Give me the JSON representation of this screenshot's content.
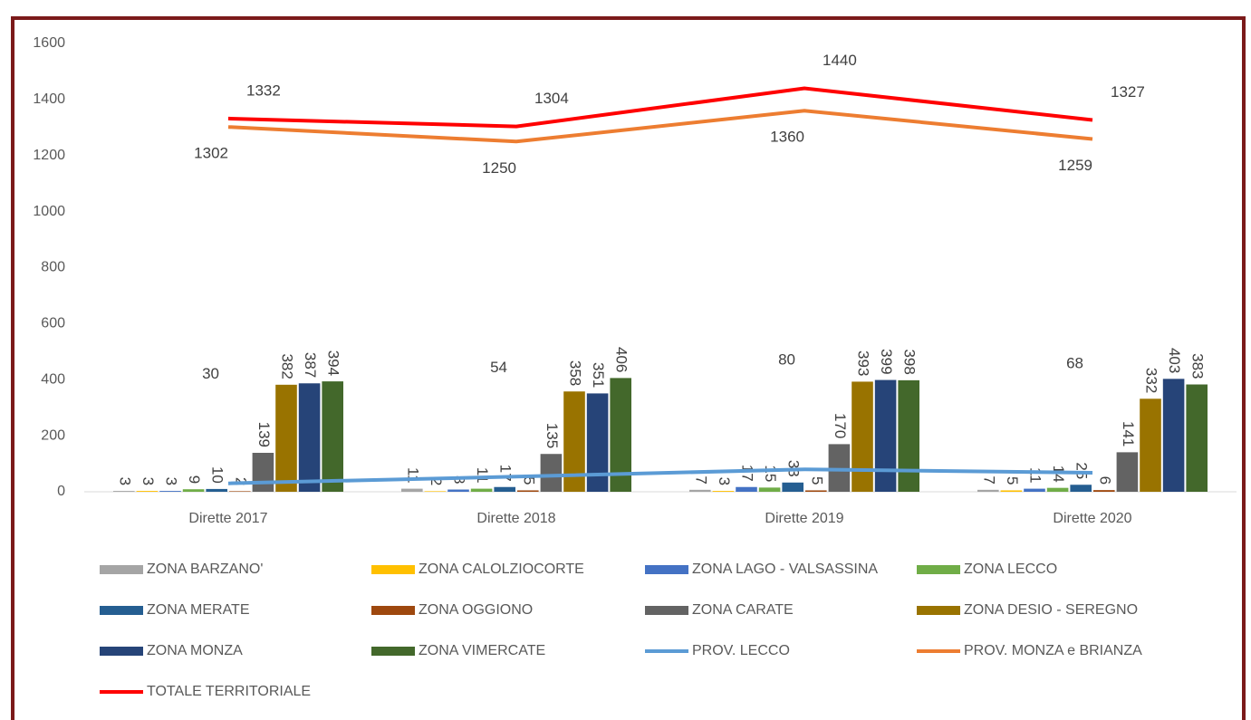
{
  "chart_data": {
    "type": "bar_line",
    "categories": [
      "Dirette 2017",
      "Dirette 2018",
      "Dirette 2019",
      "Dirette 2020"
    ],
    "ylim": [
      0,
      1600
    ],
    "yticks": [
      0,
      200,
      400,
      600,
      800,
      1000,
      1200,
      1400,
      1600
    ],
    "series": [
      {
        "name": "ZONA BARZANO'",
        "type": "bar",
        "color": "#a5a5a5",
        "values": [
          3,
          11,
          7,
          7
        ]
      },
      {
        "name": "ZONA CALOLZIOCORTE",
        "type": "bar",
        "color": "#ffc000",
        "values": [
          3,
          2,
          3,
          5
        ]
      },
      {
        "name": "ZONA LAGO - VALSASSINA",
        "type": "bar",
        "color": "#4472c4",
        "values": [
          3,
          8,
          17,
          11
        ]
      },
      {
        "name": "ZONA LECCO",
        "type": "bar",
        "color": "#70ad47",
        "values": [
          9,
          11,
          15,
          14
        ]
      },
      {
        "name": "ZONA MERATE",
        "type": "bar",
        "color": "#255e91",
        "values": [
          10,
          17,
          33,
          25
        ]
      },
      {
        "name": "ZONA OGGIONO",
        "type": "bar",
        "color": "#9e480e",
        "values": [
          2,
          5,
          5,
          6
        ]
      },
      {
        "name": "ZONA CARATE",
        "type": "bar",
        "color": "#636363",
        "values": [
          139,
          135,
          170,
          141
        ]
      },
      {
        "name": "ZONA DESIO - SEREGNO",
        "type": "bar",
        "color": "#997300",
        "values": [
          382,
          358,
          393,
          332
        ]
      },
      {
        "name": "ZONA MONZA",
        "type": "bar",
        "color": "#264478",
        "values": [
          387,
          351,
          399,
          403
        ]
      },
      {
        "name": "ZONA VIMERCATE",
        "type": "bar",
        "color": "#43682b",
        "values": [
          394,
          406,
          398,
          383
        ]
      },
      {
        "name": "PROV. LECCO",
        "type": "line",
        "color": "#5b9bd5",
        "values": [
          30,
          54,
          80,
          68
        ]
      },
      {
        "name": "PROV. MONZA e BRIANZA",
        "type": "line",
        "color": "#ed7d31",
        "values": [
          1302,
          1250,
          1360,
          1259
        ]
      },
      {
        "name": "TOTALE TERRITORIALE",
        "type": "line",
        "color": "#ff0000",
        "values": [
          1332,
          1304,
          1440,
          1327
        ]
      }
    ]
  }
}
